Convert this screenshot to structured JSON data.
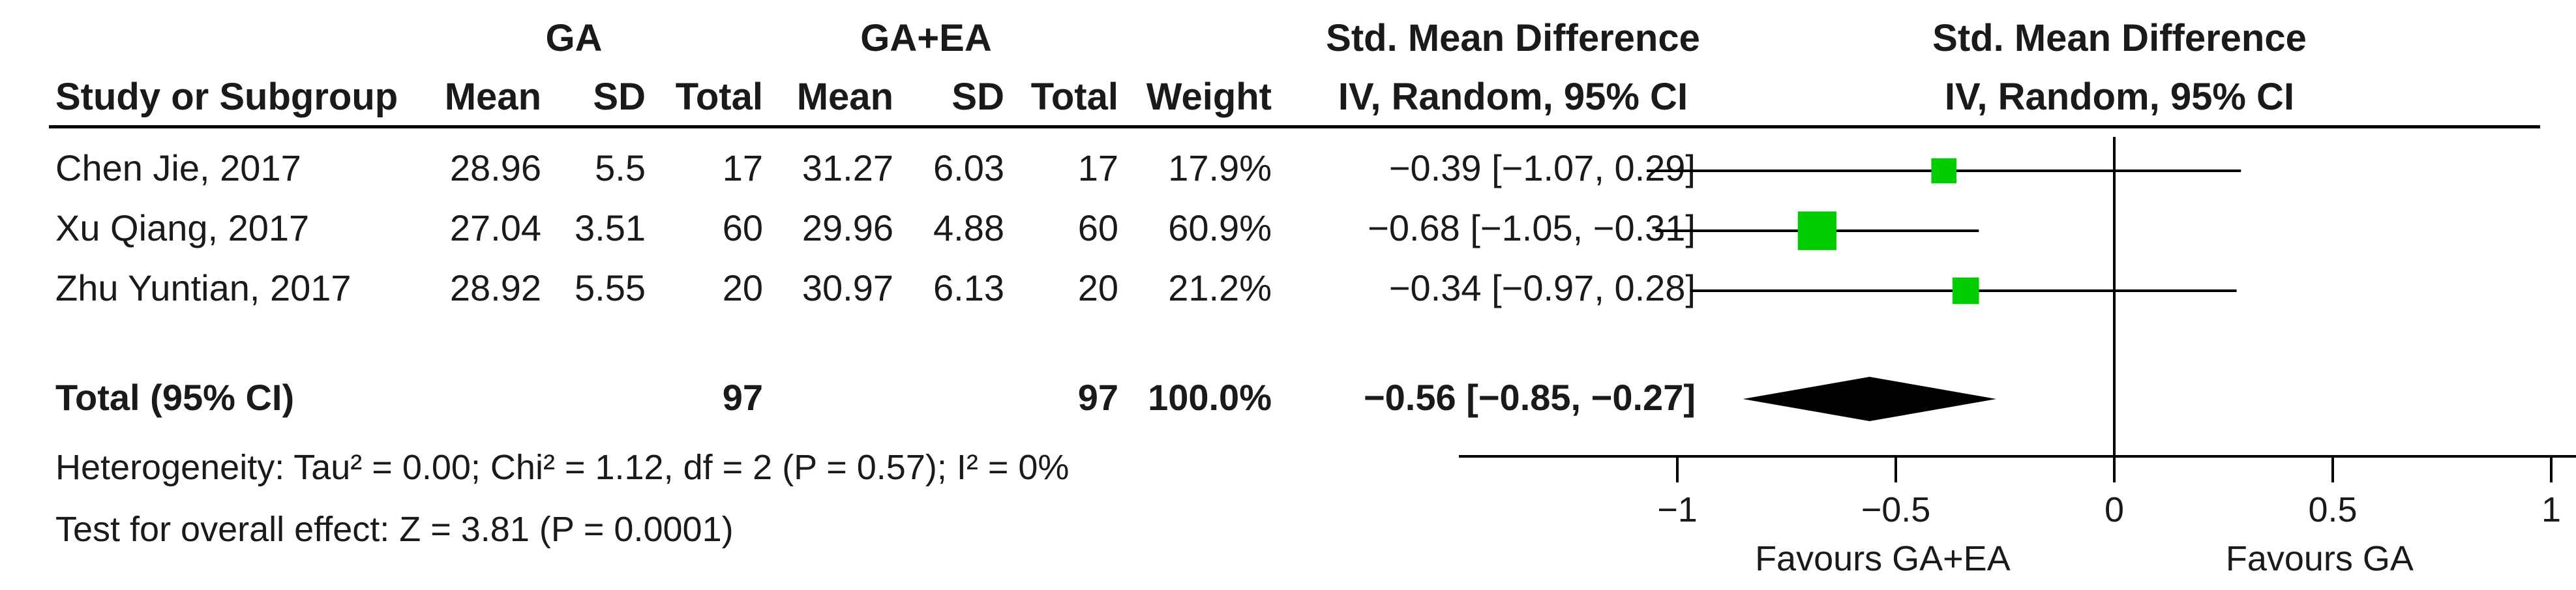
{
  "headers": {
    "group1": "GA",
    "group2": "GA+EA",
    "smd_table": "Std. Mean Difference",
    "smd_plot": "Std. Mean Difference",
    "study": "Study or Subgroup",
    "mean1": "Mean",
    "sd1": "SD",
    "total1": "Total",
    "mean2": "Mean",
    "sd2": "SD",
    "total2": "Total",
    "weight": "Weight",
    "method_table": "IV, Random, 95% CI",
    "method_plot": "IV, Random, 95% CI"
  },
  "studies": [
    {
      "name": "Chen Jie, 2017",
      "mean1": "28.96",
      "sd1": "5.5",
      "total1": "17",
      "mean2": "31.27",
      "sd2": "6.03",
      "total2": "17",
      "weight": "17.9%",
      "ci_text": "−0.39 [−1.07, 0.29]"
    },
    {
      "name": "Xu Qiang, 2017",
      "mean1": "27.04",
      "sd1": "3.51",
      "total1": "60",
      "mean2": "29.96",
      "sd2": "4.88",
      "total2": "60",
      "weight": "60.9%",
      "ci_text": "−0.68 [−1.05, −0.31]"
    },
    {
      "name": "Zhu Yuntian, 2017",
      "mean1": "28.92",
      "sd1": "5.55",
      "total1": "20",
      "mean2": "30.97",
      "sd2": "6.13",
      "total2": "20",
      "weight": "21.2%",
      "ci_text": "−0.34 [−0.97, 0.28]"
    }
  ],
  "total": {
    "label": "Total (95% CI)",
    "total1": "97",
    "total2": "97",
    "weight": "100.0%",
    "ci_text": "−0.56 [−0.85, −0.27]"
  },
  "heterogeneity": "Heterogeneity: Tau² = 0.00; Chi² = 1.12, df = 2 (P = 0.57); I² = 0%",
  "overall_effect": "Test for overall effect: Z = 3.81 (P = 0.0001)",
  "favours_left": "Favours GA+EA",
  "favours_right": "Favours GA",
  "colors": {
    "marker": "#00cc00",
    "diamond": "#000000",
    "line": "#000000"
  },
  "chart_data": {
    "type": "forest",
    "xlim": [
      -1.5,
      1.5
    ],
    "ticks": [
      {
        "value": -1,
        "label": "−1"
      },
      {
        "value": -0.5,
        "label": "−0.5"
      },
      {
        "value": 0,
        "label": "0"
      },
      {
        "value": 0.5,
        "label": "0.5"
      },
      {
        "value": 1,
        "label": "1"
      }
    ],
    "studies": [
      {
        "name": "Chen Jie, 2017",
        "estimate": -0.39,
        "lower": -1.07,
        "upper": 0.29,
        "weight": 17.9
      },
      {
        "name": "Xu Qiang, 2017",
        "estimate": -0.68,
        "lower": -1.05,
        "upper": -0.31,
        "weight": 60.9
      },
      {
        "name": "Zhu Yuntian, 2017",
        "estimate": -0.34,
        "lower": -0.97,
        "upper": 0.28,
        "weight": 21.2
      }
    ],
    "pooled": {
      "estimate": -0.56,
      "lower": -0.85,
      "upper": -0.27
    }
  }
}
